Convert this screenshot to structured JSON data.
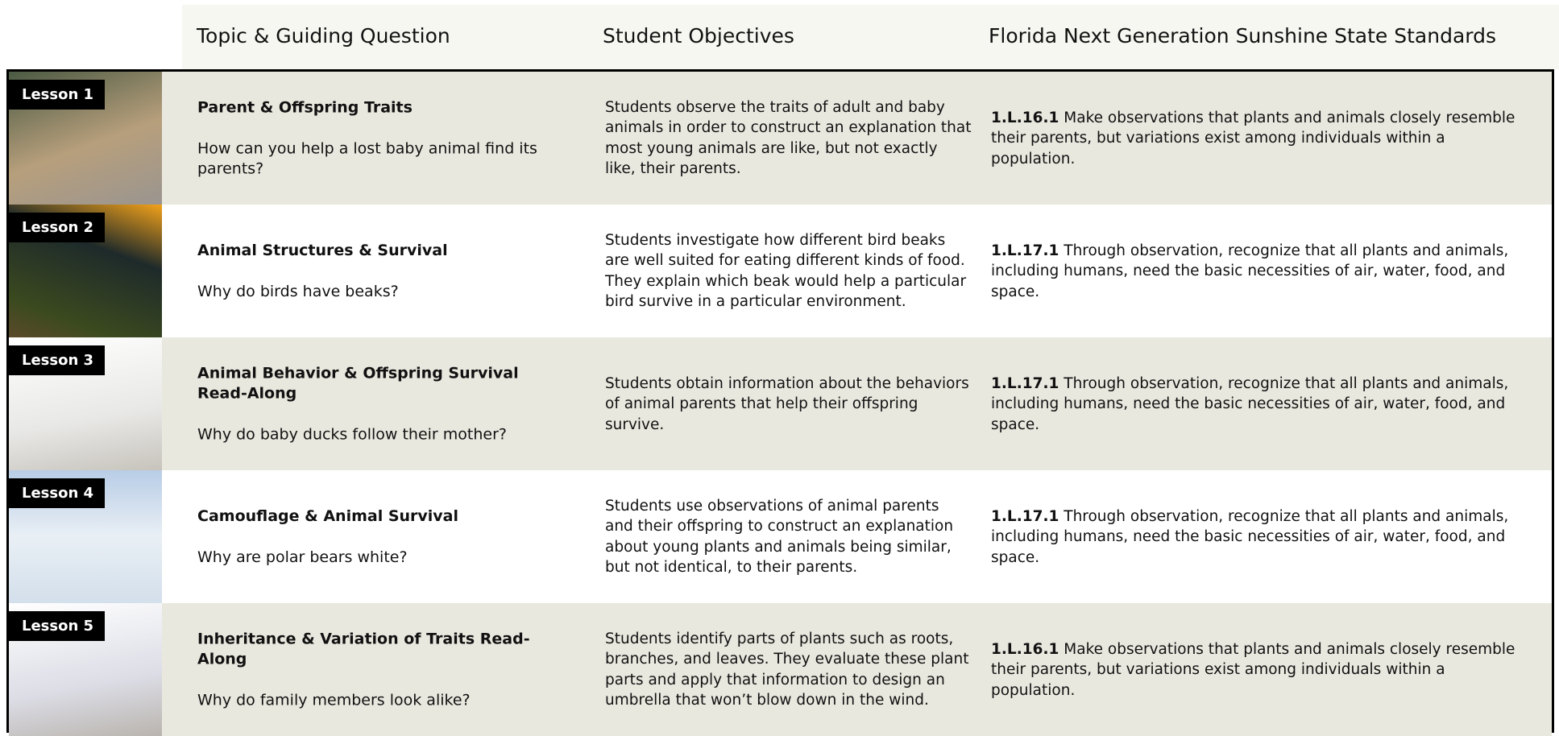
{
  "header": {
    "columns": [
      "Topic & Guiding Question",
      "Student Objectives",
      "Florida Next Generation Sunshine State Standards"
    ]
  },
  "lessons": [
    {
      "label": "Lesson 1",
      "topic": "Parent & Offspring Traits",
      "question": "How can you help a lost baby animal find its parents?",
      "objectives": "Students observe the traits of adult and baby animals in order to construct an explanation that most young animals are like, but not exactly like, their parents.",
      "standard_code": "1.L.16.1",
      "standard_text": "Make observations that plants and animals closely resemble their parents, but variations exist among individuals within a population."
    },
    {
      "label": "Lesson 2",
      "topic": "Animal Structures & Survival",
      "question": "Why do birds have beaks?",
      "objectives": "Students investigate how different bird beaks are well suited for eating different kinds of food. They explain which beak would help a particular bird survive in a particular environment.",
      "standard_code": "1.L.17.1",
      "standard_text": "Through observation, recognize that all plants and animals, including humans, need the basic necessities of air, water, food, and space."
    },
    {
      "label": "Lesson 3",
      "topic": "Animal Behavior & Offspring Survival Read-Along",
      "question": "Why do baby ducks follow their mother?",
      "objectives": "Students obtain information about the behaviors of animal parents that help their offspring survive.",
      "standard_code": "1.L.17.1",
      "standard_text": "Through observation, recognize that all plants and animals, including humans, need the basic necessities of air, water, food, and space."
    },
    {
      "label": "Lesson 4",
      "topic": "Camouflage & Animal Survival",
      "question": "Why are polar bears white?",
      "objectives": "Students use observations of animal parents and their offspring to construct an explanation about young plants and animals being similar, but not identical, to their parents.",
      "standard_code": "1.L.17.1",
      "standard_text": "Through observation, recognize that all plants and animals, including humans, need the basic necessities of air, water, food, and space."
    },
    {
      "label": "Lesson 5",
      "topic": "Inheritance & Variation of Traits Read-Along",
      "question": "Why do family members look alike?",
      "objectives": "Students identify parts of plants such as roots, branches, and leaves. They evaluate these plant parts and apply that information to design an umbrella that won’t blow down in the wind.",
      "standard_code": "1.L.16.1",
      "standard_text": "Make observations that plants and animals closely resemble their parents, but variations exist among individuals within a population."
    }
  ]
}
